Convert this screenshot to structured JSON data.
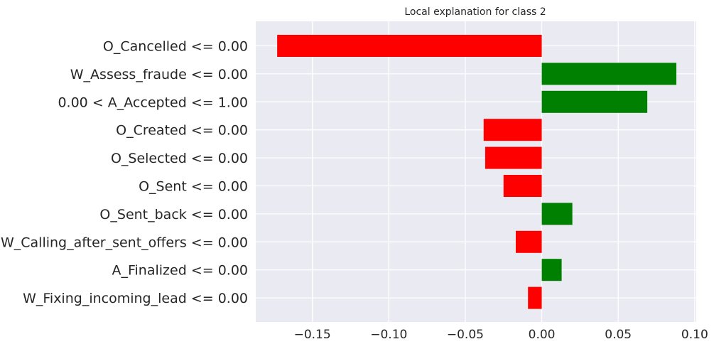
{
  "chart_data": {
    "type": "bar",
    "orientation": "horizontal",
    "title": "Local explanation for class 2",
    "xlabel": "",
    "ylabel": "",
    "xlim": [
      -0.187,
      0.101
    ],
    "grid": true,
    "legend": "none",
    "categories": [
      "O_Cancelled <= 0.00",
      "W_Assess_fraude <= 0.00",
      "0.00 < A_Accepted <= 1.00",
      "O_Created <= 0.00",
      "O_Selected <= 0.00",
      "O_Sent <= 0.00",
      "O_Sent_back <= 0.00",
      "W_Calling_after_sent_offers <= 0.00",
      "A_Finalized <= 0.00",
      "W_Fixing_incoming_lead <= 0.00"
    ],
    "values": [
      -0.173,
      0.088,
      0.069,
      -0.038,
      -0.037,
      -0.025,
      0.02,
      -0.017,
      0.013,
      -0.009
    ],
    "xticks": [
      -0.15,
      -0.1,
      -0.05,
      0.0,
      0.05,
      0.1
    ],
    "xtick_labels": [
      "−0.15",
      "−0.10",
      "−0.05",
      "0.00",
      "0.05",
      "0.10"
    ],
    "colors": {
      "positive": "#008000",
      "negative": "#ff0000",
      "background": "#eaeaf2",
      "grid": "#ffffff",
      "text": "#262626"
    }
  }
}
